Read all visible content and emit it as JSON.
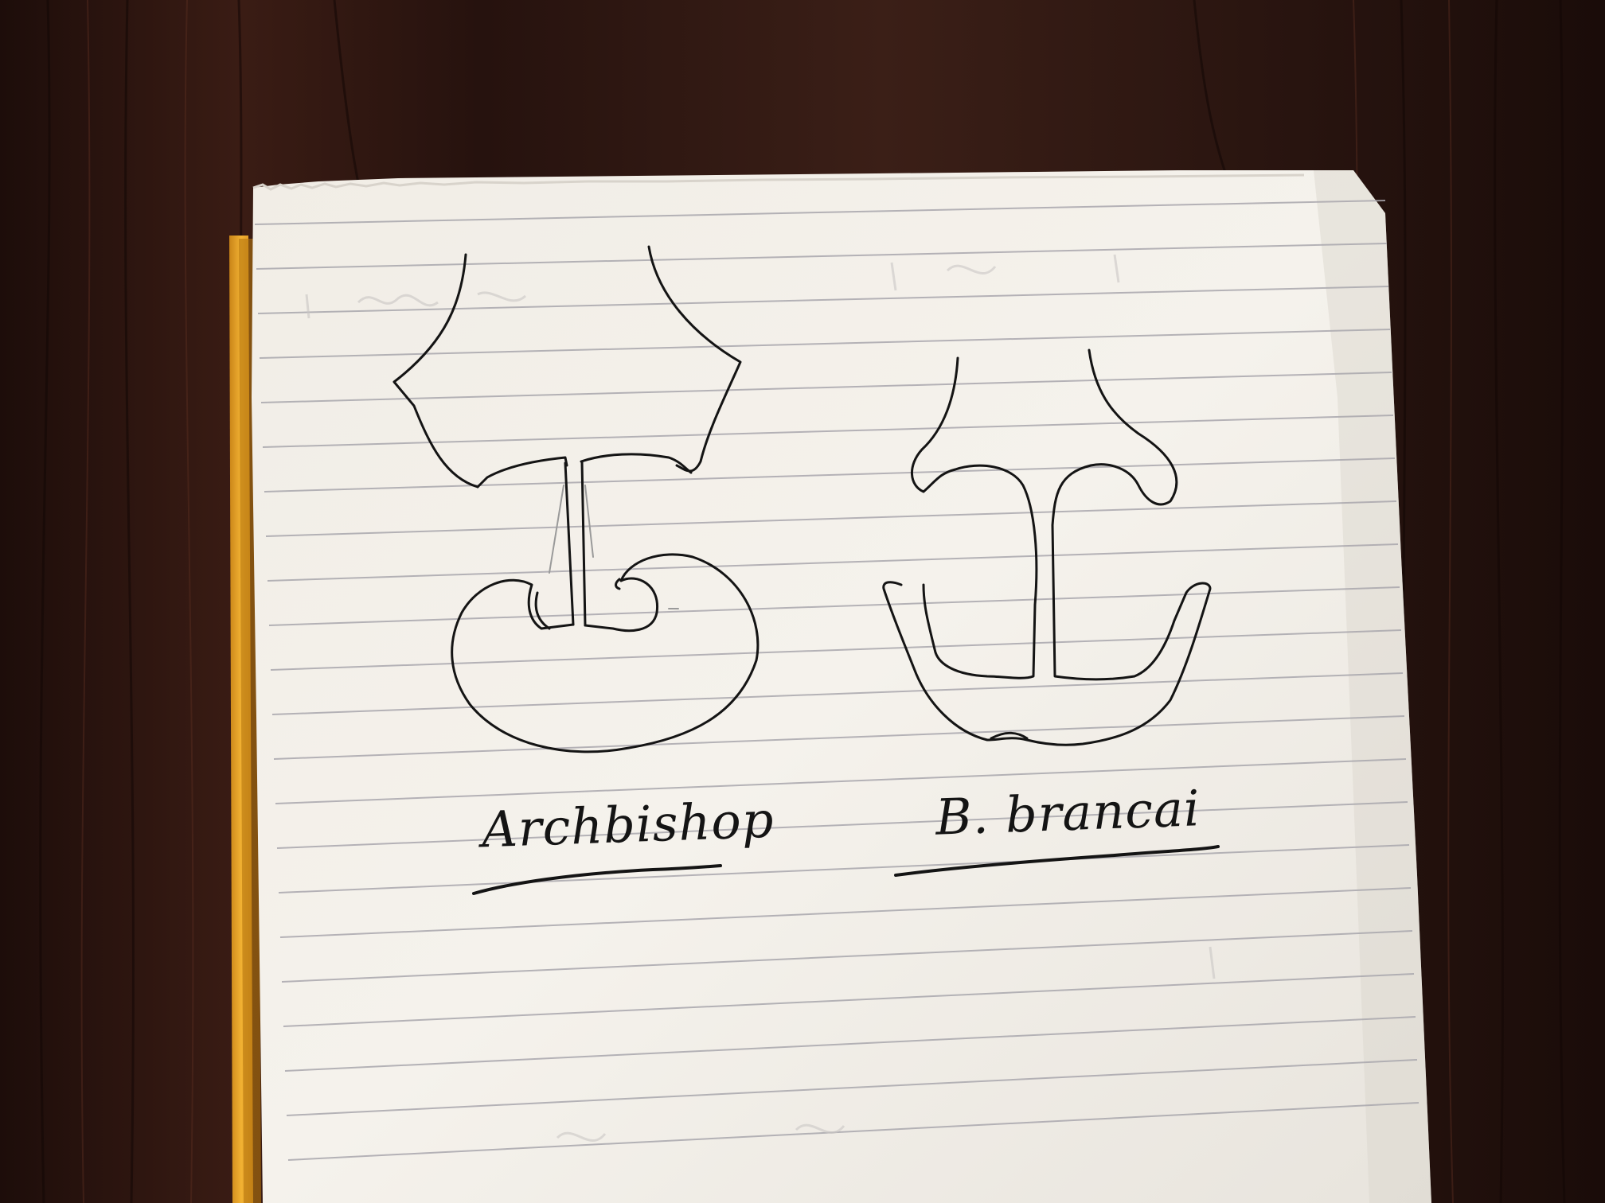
{
  "labels": {
    "left": "Archbishop",
    "right": "B. brancai"
  },
  "colors": {
    "table": "#2a1410",
    "paper": "#f3f0ea",
    "ink": "#141414",
    "notebook_edge": "#e9a52a"
  }
}
